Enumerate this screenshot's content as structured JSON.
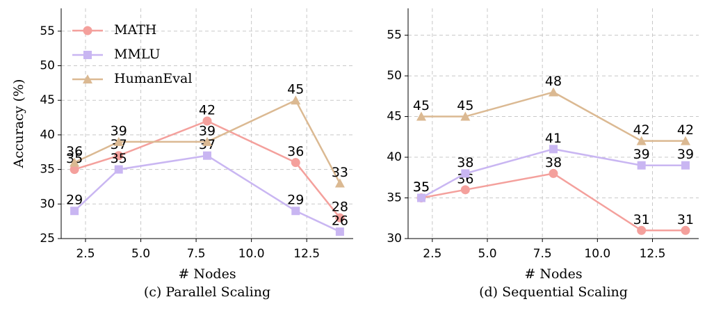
{
  "chart_data": [
    {
      "type": "line",
      "title": "(c) Parallel Scaling",
      "xlabel": "# Nodes",
      "ylabel": "Accuracy (%)",
      "x": [
        2,
        4,
        8,
        12,
        14
      ],
      "series": [
        {
          "name": "MATH",
          "color": "#f4a09c",
          "marker": "circle",
          "values": [
            35,
            37,
            42,
            36,
            28
          ]
        },
        {
          "name": "MMLU",
          "color": "#c9b6f2",
          "marker": "square",
          "values": [
            29,
            35,
            37,
            29,
            26
          ]
        },
        {
          "name": "HumanEval",
          "color": "#dbb992",
          "marker": "triangle",
          "values": [
            36,
            39,
            39,
            45,
            33
          ]
        }
      ],
      "xlim": [
        1.4,
        14.6
      ],
      "xticks": [
        2.5,
        {
          "value": 5,
          "label": "5.0"
        },
        7.5,
        {
          "value": 10,
          "label": "10.0"
        },
        12.5
      ],
      "ylim": [
        25,
        58.3
      ],
      "yticks": [
        25,
        30,
        35,
        40,
        45,
        50,
        55
      ],
      "grid": true,
      "legend": "upper left"
    },
    {
      "type": "line",
      "title": "(d) Sequential Scaling",
      "xlabel": "# Nodes",
      "x": [
        2,
        4,
        8,
        12,
        14
      ],
      "series": [
        {
          "color": "#f4a09c",
          "marker": "circle",
          "values": [
            35,
            36,
            38,
            31,
            31
          ]
        },
        {
          "color": "#c9b6f2",
          "marker": "square",
          "values": [
            35,
            38,
            41,
            39,
            39
          ]
        },
        {
          "color": "#dbb992",
          "marker": "triangle",
          "values": [
            45,
            45,
            48,
            42,
            42
          ]
        }
      ],
      "xlim": [
        1.4,
        14.6
      ],
      "xticks": [
        2.5,
        {
          "value": 5,
          "label": "5.0"
        },
        7.5,
        {
          "value": 10,
          "label": "10.0"
        },
        12.5
      ],
      "ylim": [
        30,
        58.3
      ],
      "yticks": [
        30,
        35,
        40,
        45,
        50,
        55
      ],
      "grid": true
    }
  ]
}
